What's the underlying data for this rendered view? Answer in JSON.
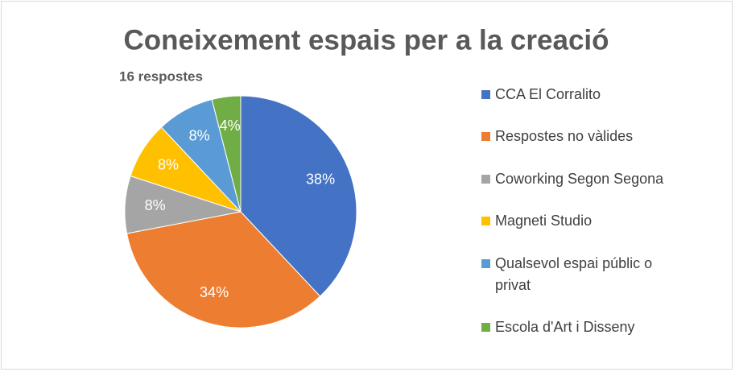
{
  "chart_data": {
    "type": "pie",
    "title": "Coneixement espais per a la creació",
    "subtitle": "16 respostes",
    "series": [
      {
        "name": "CCA El Corralito",
        "color": "#4472c4",
        "values": [
          38
        ]
      },
      {
        "name": "Respostes no vàlides",
        "color": "#ed7d31",
        "values": [
          34
        ]
      },
      {
        "name": "Coworking Segon Segona",
        "color": "#a5a5a5",
        "values": [
          8
        ]
      },
      {
        "name": "Magneti Studio",
        "color": "#ffc000",
        "values": [
          8
        ]
      },
      {
        "name": "Qualsevol espai públic o privat",
        "color": "#5b9bd5",
        "values": [
          8
        ]
      },
      {
        "name": "Escola d'Art i Disseny",
        "color": "#70ad47",
        "values": [
          4
        ]
      }
    ],
    "value_labels": [
      "38%",
      "34%",
      "8%",
      "8%",
      "8%",
      "4%"
    ],
    "legend": "right"
  }
}
